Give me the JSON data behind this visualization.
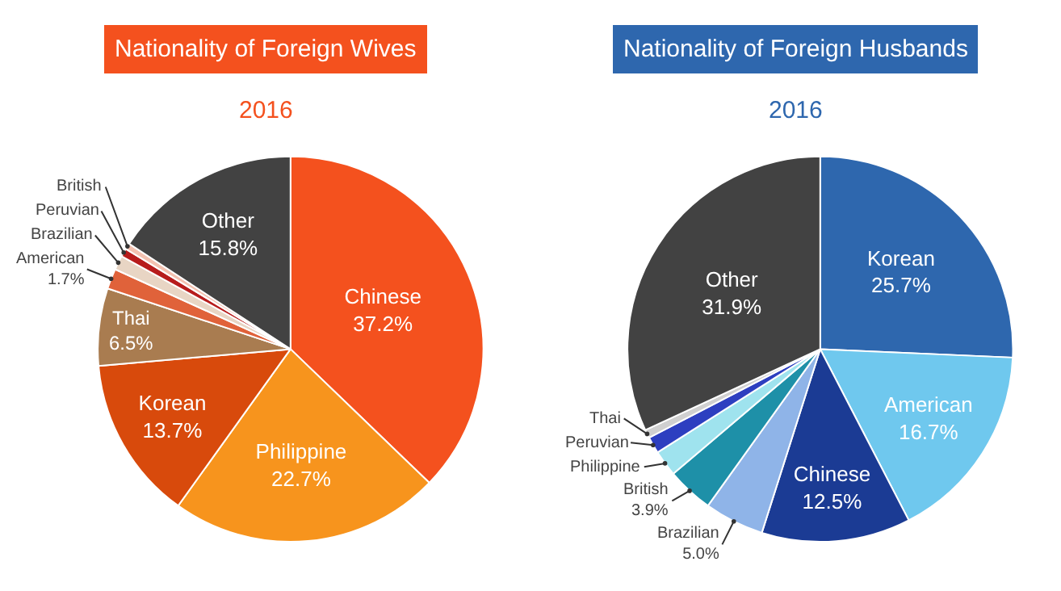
{
  "chart_data": [
    {
      "type": "pie",
      "title": "Nationality of Foreign Wives",
      "subtitle": "2016",
      "categories": [
        "Chinese",
        "Philippine",
        "Korean",
        "Thai",
        "American",
        "Brazilian",
        "Peruvian",
        "British",
        "Other"
      ],
      "values": [
        37.2,
        22.7,
        13.7,
        6.5,
        1.7,
        1.2,
        0.7,
        0.5,
        15.8
      ],
      "value_labels": [
        "37.2%",
        "22.7%",
        "13.7%",
        "6.5%",
        "1.7%",
        null,
        null,
        null,
        "15.8%"
      ],
      "colors": [
        "#f4511e",
        "#f7941d",
        "#d84a0c",
        "#a97c50",
        "#e0623a",
        "#e8d5c4",
        "#b71c1c",
        "#f3c1b0",
        "#424242"
      ]
    },
    {
      "type": "pie",
      "title": "Nationality of Foreign Husbands",
      "subtitle": "2016",
      "categories": [
        "Korean",
        "American",
        "Chinese",
        "Brazilian",
        "British",
        "Philippine",
        "Peruvian",
        "Thai",
        "Other"
      ],
      "values": [
        25.7,
        16.7,
        12.5,
        5.0,
        3.9,
        2.2,
        1.4,
        0.7,
        31.9
      ],
      "value_labels": [
        "25.7%",
        "16.7%",
        "12.5%",
        "5.0%",
        "3.9%",
        null,
        null,
        null,
        "31.9%"
      ],
      "colors": [
        "#2e67ae",
        "#6fc8ee",
        "#1b3b94",
        "#8fb4e8",
        "#1e90a8",
        "#9fe3ee",
        "#2d3fc0",
        "#d0d0d0",
        "#424242"
      ]
    }
  ]
}
